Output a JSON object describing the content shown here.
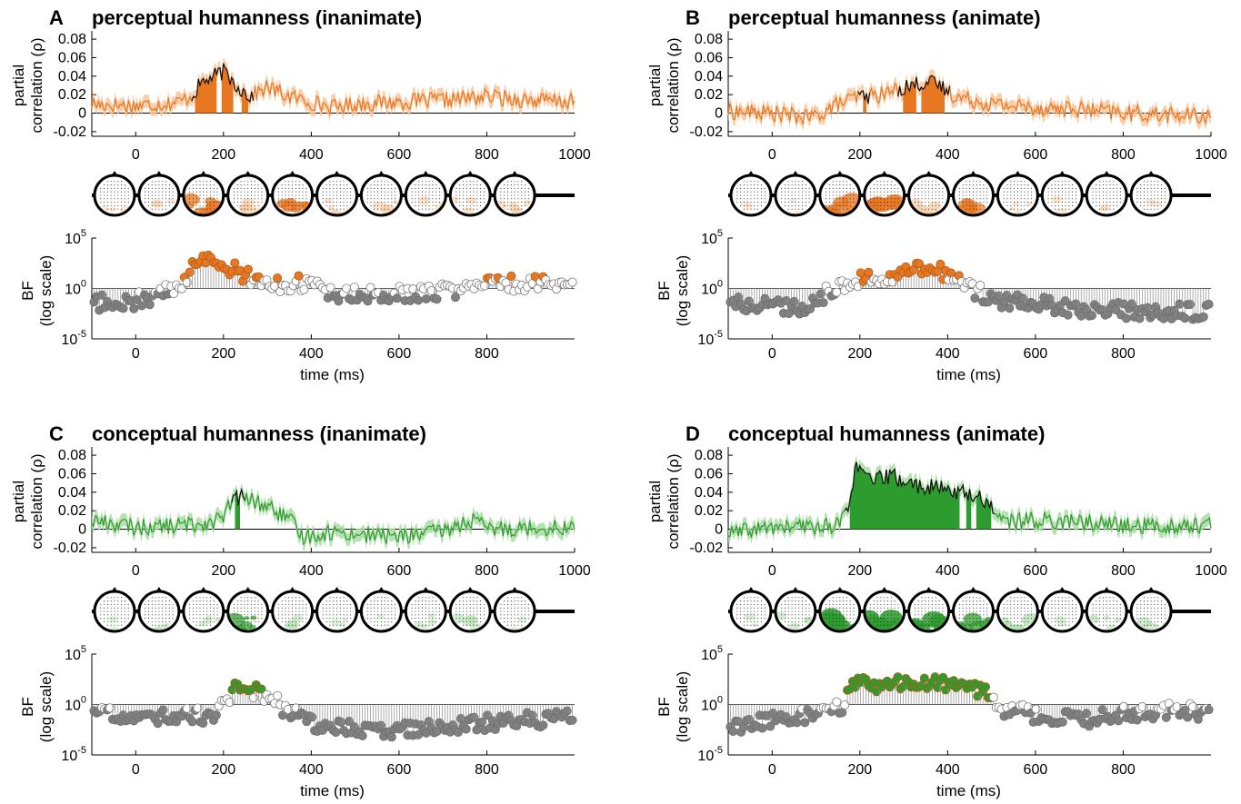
{
  "figure": {
    "x_ticks_top": [
      0,
      200,
      400,
      600,
      800,
      1000
    ],
    "x_ticks_bf": [
      0,
      200,
      400,
      600,
      800
    ],
    "corr_ticks": [
      "0.08",
      "0.06",
      "0.04",
      "0.02",
      "0",
      "-0.02"
    ],
    "corr_tick_values": [
      0.08,
      0.06,
      0.04,
      0.02,
      0,
      -0.02
    ],
    "corr_ylabel_1": "partial",
    "corr_ylabel_2": "correlation (ρ)",
    "bf_ylabel_1": "BF",
    "bf_ylabel_2": "(log scale)",
    "bf_ticks": [
      {
        "base": "10",
        "exp": "5"
      },
      {
        "base": "10",
        "exp": "0"
      },
      {
        "base": "10",
        "exp": "-5"
      }
    ],
    "bf_xlabel": "time (ms)",
    "n_topomaps": 10
  },
  "panels": [
    {
      "letter": "A",
      "title": "perceptual humanness (inanimate)",
      "color": "#e87722",
      "light": "#f7c79b",
      "col": 0,
      "row": 0,
      "chart_data": {
        "type": "line",
        "x_range_ms": [
          -100,
          1000
        ],
        "ylim": [
          -0.025,
          0.085
        ],
        "profile": [
          [
            -100,
            0.01
          ],
          [
            0,
            0.008
          ],
          [
            100,
            0.012
          ],
          [
            130,
            0.02
          ],
          [
            150,
            0.033
          ],
          [
            180,
            0.04
          ],
          [
            200,
            0.045
          ],
          [
            230,
            0.03
          ],
          [
            260,
            0.018
          ],
          [
            300,
            0.028
          ],
          [
            350,
            0.018
          ],
          [
            400,
            0.012
          ],
          [
            450,
            0.006
          ],
          [
            500,
            0.01
          ],
          [
            600,
            0.012
          ],
          [
            700,
            0.014
          ],
          [
            800,
            0.018
          ],
          [
            900,
            0.014
          ],
          [
            1000,
            0.012
          ]
        ],
        "significant_ms": [
          [
            135,
            185
          ],
          [
            195,
            225
          ],
          [
            240,
            260
          ]
        ],
        "bf_profile": [
          [
            -100,
            -1.5
          ],
          [
            0,
            -1.2
          ],
          [
            50,
            -0.8
          ],
          [
            100,
            0.3
          ],
          [
            140,
            2.5
          ],
          [
            160,
            3.0
          ],
          [
            200,
            2.5
          ],
          [
            260,
            1.0
          ],
          [
            300,
            0.5
          ],
          [
            350,
            0.4
          ],
          [
            400,
            0.6
          ],
          [
            450,
            -0.8
          ],
          [
            500,
            -0.5
          ],
          [
            600,
            -0.5
          ],
          [
            700,
            -0.3
          ],
          [
            800,
            0.4
          ],
          [
            900,
            0.5
          ],
          [
            1000,
            0.6
          ]
        ],
        "topo_intensity": [
          0.15,
          0.1,
          0.75,
          0.5,
          0.85,
          0.4,
          0.25,
          0.25,
          0.3,
          0.35
        ]
      }
    },
    {
      "letter": "B",
      "title": "perceptual humanness (animate)",
      "color": "#e87722",
      "light": "#f7c79b",
      "col": 1,
      "row": 0,
      "chart_data": {
        "type": "line",
        "x_range_ms": [
          -100,
          1000
        ],
        "ylim": [
          -0.025,
          0.085
        ],
        "profile": [
          [
            -100,
            0.002
          ],
          [
            0,
            0.0
          ],
          [
            80,
            -0.005
          ],
          [
            100,
            -0.003
          ],
          [
            150,
            0.01
          ],
          [
            200,
            0.018
          ],
          [
            250,
            0.02
          ],
          [
            300,
            0.028
          ],
          [
            350,
            0.034
          ],
          [
            380,
            0.03
          ],
          [
            420,
            0.018
          ],
          [
            500,
            0.01
          ],
          [
            600,
            0.006
          ],
          [
            700,
            0.004
          ],
          [
            800,
            0.0
          ],
          [
            900,
            -0.002
          ],
          [
            1000,
            -0.004
          ]
        ],
        "significant_ms": [
          [
            205,
            215
          ],
          [
            295,
            330
          ],
          [
            340,
            395
          ]
        ],
        "bf_profile": [
          [
            -100,
            -1.5
          ],
          [
            0,
            -1.8
          ],
          [
            80,
            -2.0
          ],
          [
            120,
            -0.5
          ],
          [
            200,
            0.8
          ],
          [
            280,
            1.0
          ],
          [
            320,
            2.0
          ],
          [
            360,
            2.2
          ],
          [
            400,
            1.2
          ],
          [
            450,
            0.0
          ],
          [
            500,
            -1.0
          ],
          [
            600,
            -1.5
          ],
          [
            700,
            -2.0
          ],
          [
            800,
            -2.2
          ],
          [
            900,
            -2.4
          ],
          [
            1000,
            -2.2
          ]
        ],
        "topo_intensity": [
          0.05,
          0.05,
          0.8,
          0.9,
          0.55,
          0.65,
          0.2,
          0.2,
          0.05,
          0.05
        ]
      }
    },
    {
      "letter": "C",
      "title": "conceptual humanness (inanimate)",
      "color": "#2e9b2e",
      "light": "#a9dca3",
      "col": 0,
      "row": 1,
      "chart_data": {
        "type": "line",
        "x_range_ms": [
          -100,
          1000
        ],
        "ylim": [
          -0.025,
          0.085
        ],
        "profile": [
          [
            -100,
            0.01
          ],
          [
            0,
            0.002
          ],
          [
            100,
            0.004
          ],
          [
            150,
            0.006
          ],
          [
            200,
            0.012
          ],
          [
            220,
            0.032
          ],
          [
            240,
            0.035
          ],
          [
            270,
            0.03
          ],
          [
            300,
            0.025
          ],
          [
            350,
            0.01
          ],
          [
            380,
            -0.008
          ],
          [
            450,
            -0.003
          ],
          [
            500,
            -0.005
          ],
          [
            600,
            -0.008
          ],
          [
            700,
            -0.002
          ],
          [
            770,
            0.01
          ],
          [
            800,
            0.0
          ],
          [
            900,
            0.002
          ],
          [
            1000,
            0.002
          ]
        ],
        "significant_ms": [
          [
            225,
            240
          ]
        ],
        "bf_profile": [
          [
            -100,
            -0.8
          ],
          [
            0,
            -1.5
          ],
          [
            100,
            -1.0
          ],
          [
            180,
            -1.2
          ],
          [
            210,
            0.5
          ],
          [
            230,
            2.0
          ],
          [
            260,
            1.5
          ],
          [
            300,
            1.0
          ],
          [
            340,
            -0.5
          ],
          [
            400,
            -2.0
          ],
          [
            500,
            -2.5
          ],
          [
            600,
            -2.5
          ],
          [
            700,
            -2.2
          ],
          [
            800,
            -1.8
          ],
          [
            900,
            -1.5
          ],
          [
            1000,
            -1.2
          ]
        ],
        "topo_intensity": [
          0.05,
          0.25,
          0.2,
          0.7,
          0.2,
          0.1,
          0.1,
          0.25,
          0.3,
          0.15
        ]
      }
    },
    {
      "letter": "D",
      "title": "conceptual humanness (animate)",
      "color": "#2e9b2e",
      "light": "#a9dca3",
      "col": 1,
      "row": 1,
      "chart_data": {
        "type": "line",
        "x_range_ms": [
          -100,
          1000
        ],
        "ylim": [
          -0.025,
          0.085
        ],
        "profile": [
          [
            -100,
            -0.005
          ],
          [
            0,
            0.002
          ],
          [
            100,
            0.003
          ],
          [
            150,
            0.005
          ],
          [
            170,
            0.02
          ],
          [
            190,
            0.065
          ],
          [
            230,
            0.052
          ],
          [
            270,
            0.058
          ],
          [
            320,
            0.048
          ],
          [
            380,
            0.044
          ],
          [
            430,
            0.04
          ],
          [
            470,
            0.035
          ],
          [
            500,
            0.025
          ],
          [
            530,
            0.008
          ],
          [
            600,
            0.01
          ],
          [
            700,
            0.008
          ],
          [
            800,
            0.004
          ],
          [
            900,
            0.003
          ],
          [
            1000,
            0.005
          ]
        ],
        "significant_ms": [
          [
            175,
            430
          ],
          [
            440,
            455
          ],
          [
            465,
            500
          ]
        ],
        "bf_profile": [
          [
            -100,
            -2.5
          ],
          [
            0,
            -1.5
          ],
          [
            100,
            -1.0
          ],
          [
            160,
            -0.3
          ],
          [
            180,
            2.3
          ],
          [
            250,
            2.0
          ],
          [
            300,
            2.0
          ],
          [
            400,
            2.0
          ],
          [
            480,
            1.5
          ],
          [
            520,
            -0.5
          ],
          [
            600,
            -1.0
          ],
          [
            700,
            -1.5
          ],
          [
            800,
            -1.0
          ],
          [
            900,
            -0.5
          ],
          [
            1000,
            -0.8
          ]
        ],
        "topo_intensity": [
          0.1,
          0.25,
          0.95,
          0.95,
          0.9,
          0.7,
          0.55,
          0.15,
          0.3,
          0.3
        ]
      }
    }
  ]
}
